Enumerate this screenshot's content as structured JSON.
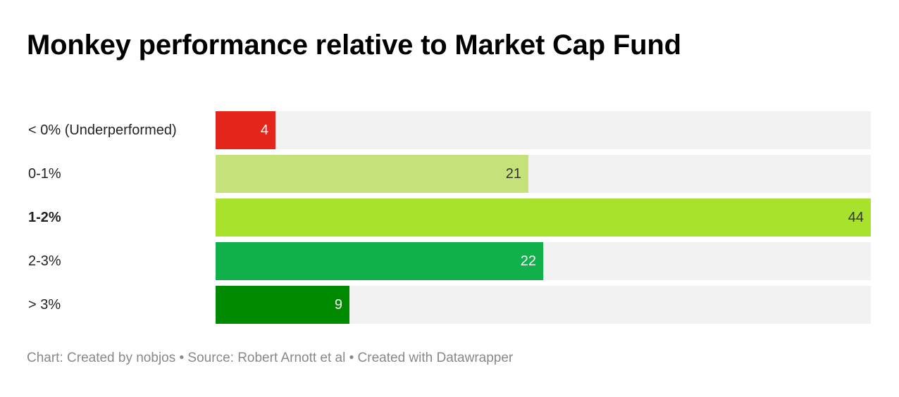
{
  "chart_data": {
    "type": "bar",
    "orientation": "horizontal",
    "title": "Monkey performance relative to Market Cap Fund",
    "categories": [
      "< 0% (Underperformed)",
      "0-1%",
      "1-2%",
      "2-3%",
      "> 3%"
    ],
    "values": [
      4,
      21,
      44,
      22,
      9
    ],
    "value_labels": [
      "4",
      "21",
      "44",
      "22",
      "9"
    ],
    "bold_categories": [
      "1-2%"
    ],
    "colors": [
      "#e4251b",
      "#c5e27a",
      "#a8e22d",
      "#10b04a",
      "#008a00"
    ],
    "label_colors": [
      "#ffffff",
      "#333333",
      "#333333",
      "#ffffff",
      "#ffffff"
    ],
    "track_color": "#f2f2f2",
    "xlim": [
      0,
      44
    ],
    "grid": false,
    "legend": "none",
    "footer": "Chart: Created by nobjos • Source: Robert Arnott et al • Created with Datawrapper"
  }
}
